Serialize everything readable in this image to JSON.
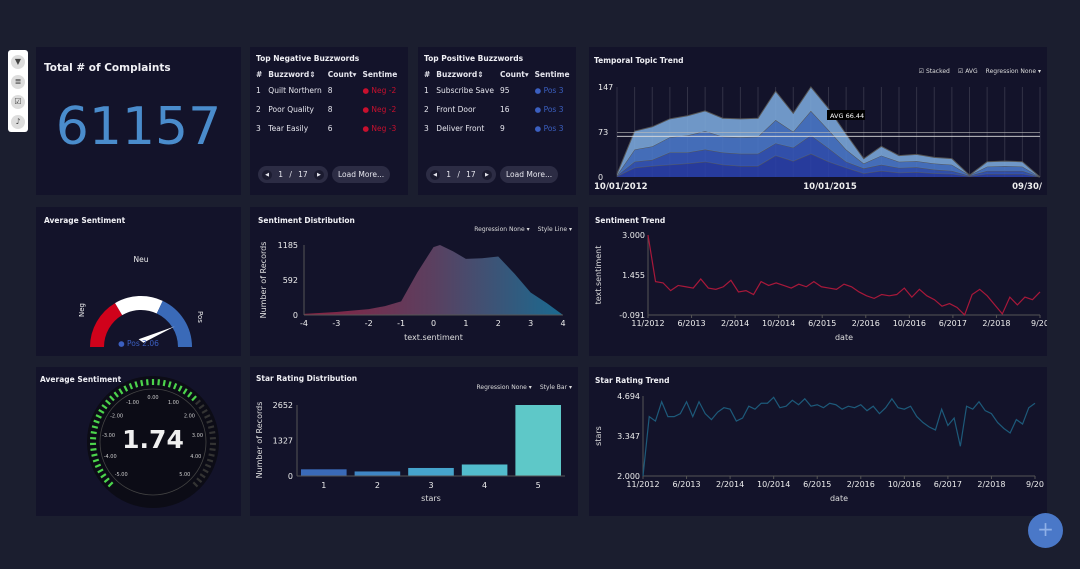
{
  "toolbar": {
    "icons": [
      "filter-icon",
      "database-icon",
      "checkbox-icon",
      "bell-icon"
    ]
  },
  "total": {
    "title": "Total # of Complaints",
    "value": "61157"
  },
  "negative": {
    "title": "Top Negative Buzzwords",
    "headers": [
      "#",
      "Buzzword⇕",
      "Count▾",
      "Sentime"
    ],
    "rows": [
      {
        "n": "1",
        "word": "Quilt Northern",
        "count": "8",
        "sent": "Neg -2"
      },
      {
        "n": "2",
        "word": "Poor Quality",
        "count": "8",
        "sent": "Neg -2"
      },
      {
        "n": "3",
        "word": "Tear Easily",
        "count": "6",
        "sent": "Neg -3"
      }
    ],
    "page": "1",
    "sep": "/",
    "pages": "17",
    "load_more": "Load More..."
  },
  "positive": {
    "title": "Top Positive Buzzwords",
    "headers": [
      "#",
      "Buzzword⇕",
      "Count▾",
      "Sentime"
    ],
    "rows": [
      {
        "n": "1",
        "word": "Subscribe Save",
        "count": "95",
        "sent": "Pos 3"
      },
      {
        "n": "2",
        "word": "Front Door",
        "count": "16",
        "sent": "Pos 3"
      },
      {
        "n": "3",
        "word": "Deliver Front",
        "count": "9",
        "sent": "Pos 3"
      }
    ],
    "page": "1",
    "sep": "/",
    "pages": "17",
    "load_more": "Load More..."
  },
  "temporal": {
    "title": "Temporal Topic Trend",
    "stacked": "Stacked",
    "avg": "AVG",
    "regression": "Regression None"
  },
  "avg_sentiment": {
    "title": "Average Sentiment",
    "neu": "Neu",
    "neg": "Neg",
    "pos": "Pos",
    "value_label": "Pos 2.06",
    "value": 2.06,
    "min": -5,
    "max": 5
  },
  "sent_dist": {
    "title": "Sentiment Distribution",
    "regression": "Regression None",
    "style": "Style Line"
  },
  "sent_trend": {
    "title": "Sentiment Trend"
  },
  "avg_dial": {
    "title": "Average Sentiment",
    "value": "1.74",
    "value_num": 1.74,
    "ticks": [
      "-5.00",
      "-4.00",
      "-3.00",
      "-2.00",
      "-1.00",
      "0.00",
      "1.00",
      "2.00",
      "3.00",
      "4.00",
      "5.00"
    ]
  },
  "star_dist": {
    "title": "Star Rating Distribution",
    "regression": "Regression None",
    "style": "Style Bar"
  },
  "star_trend": {
    "title": "Star Rating Trend"
  },
  "fab": {
    "label": "+"
  },
  "colors": {
    "accent": "#4a8ccc",
    "neg": "#c8102e",
    "pos": "#3b5fc0",
    "bar": "#5ec8c8"
  },
  "chart_data": [
    {
      "id": "temporal",
      "type": "area",
      "stacked": true,
      "xlabels": [
        "10/01/2012",
        "10/01/2015",
        "09/30/"
      ],
      "yticks": [
        "147",
        "73",
        "0"
      ],
      "ylim": [
        0,
        147
      ],
      "avg": 66.44,
      "avg_label": "AVG 66.44",
      "ref": 73,
      "series": [
        {
          "name": "layer1",
          "values": [
            1,
            15,
            18,
            20,
            22,
            25,
            20,
            18,
            18,
            35,
            26,
            38,
            25,
            15,
            6,
            10,
            7,
            8,
            6,
            5,
            1,
            5,
            5,
            5,
            0
          ]
        },
        {
          "name": "layer2",
          "values": [
            1,
            10,
            10,
            20,
            18,
            20,
            20,
            20,
            20,
            20,
            22,
            30,
            22,
            10,
            8,
            10,
            8,
            8,
            6,
            5,
            1,
            5,
            5,
            5,
            0
          ]
        },
        {
          "name": "layer3",
          "values": [
            1,
            20,
            22,
            25,
            28,
            30,
            26,
            27,
            28,
            38,
            26,
            40,
            30,
            20,
            8,
            15,
            10,
            10,
            10,
            10,
            1,
            7,
            8,
            7,
            0
          ]
        },
        {
          "name": "layer4",
          "values": [
            2,
            30,
            32,
            30,
            32,
            33,
            30,
            30,
            30,
            47,
            30,
            39,
            35,
            25,
            8,
            15,
            10,
            11,
            10,
            10,
            0,
            8,
            8,
            8,
            0
          ]
        }
      ]
    },
    {
      "id": "sent_dist",
      "type": "area",
      "xlabel": "text.sentiment",
      "ylabel": "Number of Records",
      "xlim": [
        -4,
        4
      ],
      "ylim": [
        0,
        1185
      ],
      "yticks": [
        "1185",
        "592",
        "0"
      ],
      "xticks": [
        "-4",
        "-3",
        "-2",
        "-1",
        "0",
        "1",
        "2",
        "3",
        "4"
      ],
      "x": [
        -4,
        -3,
        -2,
        -1.5,
        -1,
        -0.5,
        0,
        0.2,
        0.6,
        1,
        1.5,
        2,
        2.5,
        3,
        3.5,
        4
      ],
      "y": [
        20,
        50,
        100,
        150,
        230,
        720,
        1150,
        1185,
        1080,
        950,
        960,
        990,
        700,
        380,
        200,
        0
      ]
    },
    {
      "id": "sent_trend",
      "type": "line",
      "xlabel": "date",
      "ylabel": "text.sentiment",
      "ylim": [
        -0.091,
        3.0
      ],
      "yticks": [
        "3.000",
        "1.455",
        "-0.091"
      ],
      "xticks": [
        "11/2012",
        "6/2013",
        "2/2014",
        "10/2014",
        "6/2015",
        "2/2016",
        "10/2016",
        "6/2017",
        "2/2018",
        "9/20"
      ],
      "values": [
        3.0,
        1.2,
        1.15,
        0.85,
        1.05,
        1.0,
        0.95,
        1.3,
        0.95,
        0.9,
        1.0,
        1.25,
        0.8,
        0.85,
        0.7,
        1.2,
        1.05,
        1.15,
        1.05,
        0.95,
        1.1,
        1.0,
        1.2,
        1.0,
        0.95,
        0.9,
        1.1,
        1.0,
        0.8,
        0.65,
        0.55,
        0.7,
        0.65,
        0.7,
        0.95,
        0.6,
        0.9,
        0.65,
        0.5,
        0.25,
        0.35,
        0.2,
        -0.09,
        0.7,
        0.9,
        0.65,
        0.3,
        -0.05,
        0.6,
        0.3,
        0.6,
        0.5,
        0.8
      ]
    },
    {
      "id": "star_dist",
      "type": "bar",
      "xlabel": "stars",
      "ylabel": "Number of Records",
      "categories": [
        "1",
        "2",
        "3",
        "4",
        "5"
      ],
      "values": [
        250,
        170,
        300,
        430,
        2652
      ],
      "ylim": [
        0,
        2652
      ],
      "yticks": [
        "2652",
        "1327",
        "0"
      ]
    },
    {
      "id": "star_trend",
      "type": "line",
      "xlabel": "date",
      "ylabel": "stars",
      "ylim": [
        2.0,
        4.694
      ],
      "yticks": [
        "4.694",
        "3.347",
        "2.000"
      ],
      "xticks": [
        "11/2012",
        "6/2013",
        "2/2014",
        "10/2014",
        "6/2015",
        "2/2016",
        "10/2016",
        "6/2017",
        "2/2018",
        "9/20"
      ],
      "values": [
        2.0,
        4.0,
        3.85,
        4.5,
        4.0,
        4.0,
        4.1,
        4.5,
        4.0,
        4.5,
        4.1,
        3.9,
        4.15,
        4.3,
        4.25,
        3.85,
        3.95,
        4.35,
        4.25,
        4.45,
        4.45,
        4.65,
        4.3,
        4.35,
        4.55,
        4.4,
        4.6,
        4.35,
        4.4,
        4.3,
        4.45,
        4.4,
        4.25,
        4.35,
        4.3,
        4.4,
        4.2,
        4.35,
        4.1,
        4.3,
        4.6,
        4.3,
        4.25,
        4.35,
        4.0,
        3.8,
        3.65,
        3.55,
        4.25,
        3.7,
        3.95,
        3.0,
        4.35,
        4.25,
        4.5,
        4.2,
        4.1,
        3.8,
        3.6,
        3.45,
        3.9,
        3.75,
        4.3,
        4.45
      ]
    }
  ]
}
